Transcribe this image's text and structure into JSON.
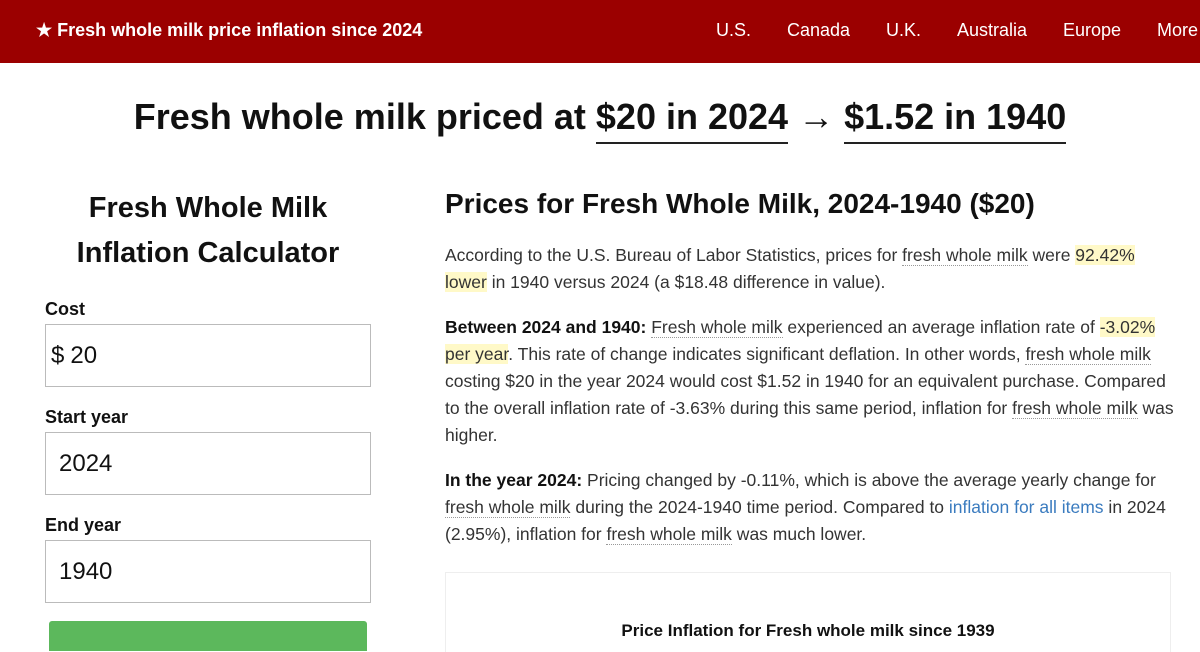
{
  "topbar": {
    "brand": "★ Fresh whole milk price inflation since 2024",
    "nav": [
      "U.S.",
      "Canada",
      "U.K.",
      "Australia",
      "Europe",
      "More"
    ]
  },
  "headline": {
    "prefix": "Fresh whole milk priced at ",
    "from": "$20 in 2024",
    "arrow": "→",
    "to": "$1.52 in 1940"
  },
  "calculator": {
    "title": "Fresh Whole Milk Inflation Calculator",
    "cost_label": "Cost",
    "currency_symbol": "$",
    "cost_value": "20",
    "start_label": "Start year",
    "start_value": "2024",
    "end_label": "End year",
    "end_value": "1940"
  },
  "article": {
    "heading": "Prices for Fresh Whole Milk, 2024-1940 ($20)",
    "p1": {
      "t1": "According to the U.S. Bureau of Labor Statistics, prices for ",
      "term": "fresh whole milk",
      "t2": " were ",
      "hl": "92.42% lower",
      "t3": " in 1940 versus 2024 (a $18.48 difference in value)."
    },
    "p2": {
      "lead": "Between 2024 and 1940:",
      "term1": "Fresh whole milk",
      "t1": " experienced an average inflation rate of ",
      "hl": "-3.02% per year",
      "t2": ". This rate of change indicates significant deflation. In other words, ",
      "term2": "fresh whole milk",
      "t3": " costing $20 in the year 2024 would cost $1.52 in 1940 for an equivalent purchase. Compared to the overall inflation rate of -3.63% during this same period, inflation for ",
      "term3": "fresh whole milk",
      "t4": " was higher."
    },
    "p3": {
      "lead": "In the year 2024:",
      "t1": " Pricing changed by -0.11%, which is above the average yearly change for ",
      "term1": "fresh whole milk",
      "t2": " during the 2024-1940 time period. Compared to ",
      "link": "inflation for all items",
      "t3": " in 2024 (2.95%), inflation for ",
      "term2": "fresh whole milk",
      "t4": " was much lower."
    },
    "chart_title": "Price Inflation for Fresh whole milk since 1939"
  }
}
